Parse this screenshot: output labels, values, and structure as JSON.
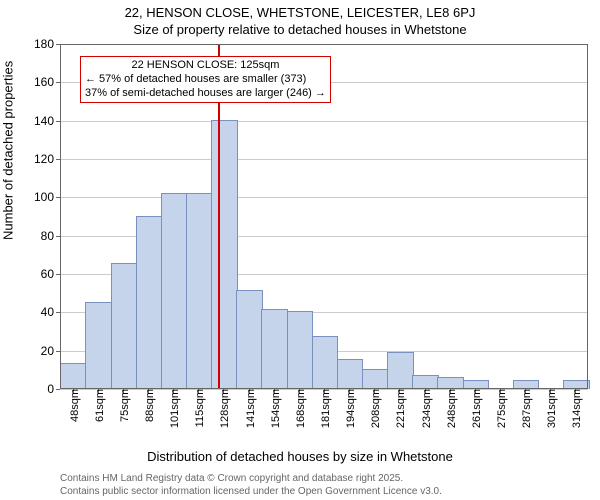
{
  "header": {
    "title_main": "22, HENSON CLOSE, WHETSTONE, LEICESTER, LE8 6PJ",
    "title_sub": "Size of property relative to detached houses in Whetstone"
  },
  "chart": {
    "type": "histogram",
    "background_color": "#ffffff",
    "grid_color": "#cccccc",
    "bar_fill": "#c6d4eb",
    "bar_stroke": "#7a91bf",
    "yaxis": {
      "label": "Number of detached properties",
      "min": 0,
      "max": 180,
      "ticks": [
        0,
        20,
        40,
        60,
        80,
        100,
        120,
        140,
        160,
        180
      ]
    },
    "xaxis": {
      "label": "Distribution of detached houses by size in Whetstone",
      "categories": [
        "48sqm",
        "61sqm",
        "75sqm",
        "88sqm",
        "101sqm",
        "115sqm",
        "128sqm",
        "141sqm",
        "154sqm",
        "168sqm",
        "181sqm",
        "194sqm",
        "208sqm",
        "221sqm",
        "234sqm",
        "248sqm",
        "261sqm",
        "275sqm",
        "287sqm",
        "301sqm",
        "314sqm"
      ]
    },
    "values": [
      13,
      45,
      65,
      90,
      102,
      102,
      140,
      51,
      41,
      40,
      27,
      15,
      10,
      19,
      7,
      6,
      4,
      0,
      4,
      0,
      4
    ],
    "bar_width_ratio": 0.98,
    "marker": {
      "value_sqm": 125,
      "line_color": "#d40000",
      "line_width": 2
    },
    "annotation": {
      "border_color": "#d40000",
      "lines": [
        "22 HENSON CLOSE: 125sqm",
        "← 57% of detached houses are smaller (373)",
        "37% of semi-detached houses are larger (246) →"
      ]
    }
  },
  "attribution": {
    "line1": "Contains HM Land Registry data © Crown copyright and database right 2025.",
    "line2": "Contains public sector information licensed under the Open Government Licence v3.0.",
    "color": "#666666"
  }
}
